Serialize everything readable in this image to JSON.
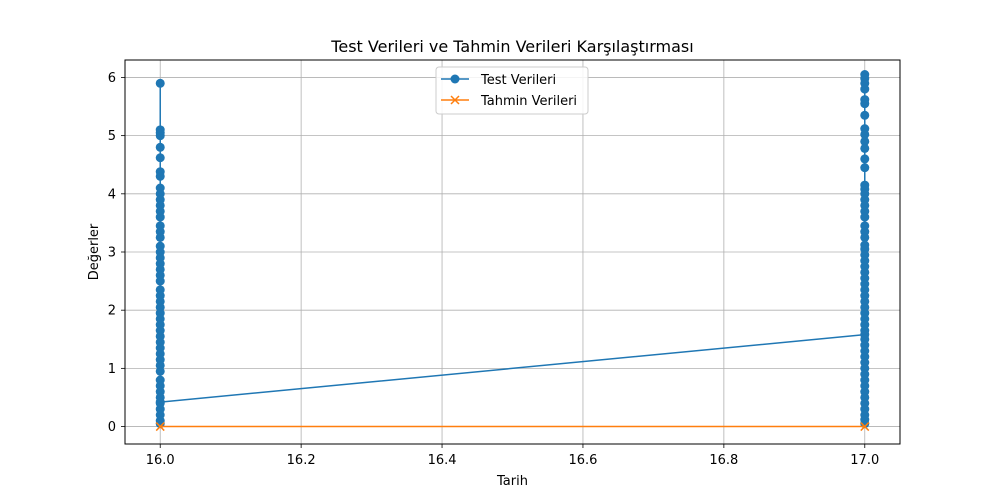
{
  "chart_data": {
    "type": "line",
    "title": "Test Verileri ve Tahmin Verileri Karşılaştırması",
    "xlabel": "Tarih",
    "ylabel": "Değerler",
    "xlim": [
      15.95,
      17.05
    ],
    "ylim": [
      -0.3,
      6.3
    ],
    "xticks": [
      "16.0",
      "16.2",
      "16.4",
      "16.6",
      "16.8",
      "17.0"
    ],
    "xtick_values": [
      16.0,
      16.2,
      16.4,
      16.6,
      16.8,
      17.0
    ],
    "yticks": [
      "0",
      "1",
      "2",
      "3",
      "4",
      "5",
      "6"
    ],
    "ytick_values": [
      0,
      1,
      2,
      3,
      4,
      5,
      6
    ],
    "grid": true,
    "legend_position": "top-center",
    "series": [
      {
        "name": "Test Verileri",
        "color": "#1f77b4",
        "marker": "circle",
        "points": [
          {
            "x": 16.0,
            "y": 5.9
          },
          {
            "x": 16.0,
            "y": 5.1
          },
          {
            "x": 16.0,
            "y": 5.05
          },
          {
            "x": 16.0,
            "y": 5.0
          },
          {
            "x": 16.0,
            "y": 4.8
          },
          {
            "x": 16.0,
            "y": 4.62
          },
          {
            "x": 16.0,
            "y": 4.38
          },
          {
            "x": 16.0,
            "y": 4.3
          },
          {
            "x": 16.0,
            "y": 4.1
          },
          {
            "x": 16.0,
            "y": 4.0
          },
          {
            "x": 16.0,
            "y": 3.9
          },
          {
            "x": 16.0,
            "y": 3.8
          },
          {
            "x": 16.0,
            "y": 3.7
          },
          {
            "x": 16.0,
            "y": 3.6
          },
          {
            "x": 16.0,
            "y": 3.45
          },
          {
            "x": 16.0,
            "y": 3.35
          },
          {
            "x": 16.0,
            "y": 3.25
          },
          {
            "x": 16.0,
            "y": 3.1
          },
          {
            "x": 16.0,
            "y": 3.0
          },
          {
            "x": 16.0,
            "y": 2.9
          },
          {
            "x": 16.0,
            "y": 2.8
          },
          {
            "x": 16.0,
            "y": 2.7
          },
          {
            "x": 16.0,
            "y": 2.6
          },
          {
            "x": 16.0,
            "y": 2.5
          },
          {
            "x": 16.0,
            "y": 2.35
          },
          {
            "x": 16.0,
            "y": 2.25
          },
          {
            "x": 16.0,
            "y": 2.15
          },
          {
            "x": 16.0,
            "y": 2.05
          },
          {
            "x": 16.0,
            "y": 1.95
          },
          {
            "x": 16.0,
            "y": 1.85
          },
          {
            "x": 16.0,
            "y": 1.75
          },
          {
            "x": 16.0,
            "y": 1.65
          },
          {
            "x": 16.0,
            "y": 1.55
          },
          {
            "x": 16.0,
            "y": 1.45
          },
          {
            "x": 16.0,
            "y": 1.35
          },
          {
            "x": 16.0,
            "y": 1.25
          },
          {
            "x": 16.0,
            "y": 1.15
          },
          {
            "x": 16.0,
            "y": 1.05
          },
          {
            "x": 16.0,
            "y": 0.95
          },
          {
            "x": 16.0,
            "y": 0.8
          },
          {
            "x": 16.0,
            "y": 0.7
          },
          {
            "x": 16.0,
            "y": 0.6
          },
          {
            "x": 16.0,
            "y": 0.5
          },
          {
            "x": 16.0,
            "y": 0.4
          },
          {
            "x": 16.0,
            "y": 0.3
          },
          {
            "x": 16.0,
            "y": 0.2
          },
          {
            "x": 16.0,
            "y": 0.1
          },
          {
            "x": 16.0,
            "y": 0.05
          },
          {
            "x": 16.0,
            "y": 0.42
          },
          {
            "x": 17.0,
            "y": 1.58
          },
          {
            "x": 17.0,
            "y": 6.05
          },
          {
            "x": 17.0,
            "y": 5.98
          },
          {
            "x": 17.0,
            "y": 5.9
          },
          {
            "x": 17.0,
            "y": 5.8
          },
          {
            "x": 17.0,
            "y": 5.62
          },
          {
            "x": 17.0,
            "y": 5.55
          },
          {
            "x": 17.0,
            "y": 5.35
          },
          {
            "x": 17.0,
            "y": 5.12
          },
          {
            "x": 17.0,
            "y": 5.02
          },
          {
            "x": 17.0,
            "y": 4.9
          },
          {
            "x": 17.0,
            "y": 4.78
          },
          {
            "x": 17.0,
            "y": 4.6
          },
          {
            "x": 17.0,
            "y": 4.45
          },
          {
            "x": 17.0,
            "y": 4.15
          },
          {
            "x": 17.0,
            "y": 4.08
          },
          {
            "x": 17.0,
            "y": 4.0
          },
          {
            "x": 17.0,
            "y": 3.9
          },
          {
            "x": 17.0,
            "y": 3.8
          },
          {
            "x": 17.0,
            "y": 3.7
          },
          {
            "x": 17.0,
            "y": 3.6
          },
          {
            "x": 17.0,
            "y": 3.45
          },
          {
            "x": 17.0,
            "y": 3.35
          },
          {
            "x": 17.0,
            "y": 3.25
          },
          {
            "x": 17.0,
            "y": 3.12
          },
          {
            "x": 17.0,
            "y": 3.05
          },
          {
            "x": 17.0,
            "y": 2.95
          },
          {
            "x": 17.0,
            "y": 2.85
          },
          {
            "x": 17.0,
            "y": 2.75
          },
          {
            "x": 17.0,
            "y": 2.65
          },
          {
            "x": 17.0,
            "y": 2.55
          },
          {
            "x": 17.0,
            "y": 2.45
          },
          {
            "x": 17.0,
            "y": 2.35
          },
          {
            "x": 17.0,
            "y": 2.25
          },
          {
            "x": 17.0,
            "y": 2.15
          },
          {
            "x": 17.0,
            "y": 2.05
          },
          {
            "x": 17.0,
            "y": 1.95
          },
          {
            "x": 17.0,
            "y": 1.85
          },
          {
            "x": 17.0,
            "y": 1.75
          },
          {
            "x": 17.0,
            "y": 1.65
          },
          {
            "x": 17.0,
            "y": 1.5
          },
          {
            "x": 17.0,
            "y": 1.4
          },
          {
            "x": 17.0,
            "y": 1.3
          },
          {
            "x": 17.0,
            "y": 1.2
          },
          {
            "x": 17.0,
            "y": 1.1
          },
          {
            "x": 17.0,
            "y": 1.0
          },
          {
            "x": 17.0,
            "y": 0.9
          },
          {
            "x": 17.0,
            "y": 0.8
          },
          {
            "x": 17.0,
            "y": 0.7
          },
          {
            "x": 17.0,
            "y": 0.6
          },
          {
            "x": 17.0,
            "y": 0.5
          },
          {
            "x": 17.0,
            "y": 0.4
          },
          {
            "x": 17.0,
            "y": 0.3
          },
          {
            "x": 17.0,
            "y": 0.2
          },
          {
            "x": 17.0,
            "y": 0.12
          },
          {
            "x": 17.0,
            "y": 0.05
          }
        ]
      },
      {
        "name": "Tahmin Verileri",
        "color": "#ff7f0e",
        "marker": "x",
        "points": [
          {
            "x": 16.0,
            "y": 0.0
          },
          {
            "x": 17.0,
            "y": 0.0
          }
        ]
      }
    ]
  }
}
